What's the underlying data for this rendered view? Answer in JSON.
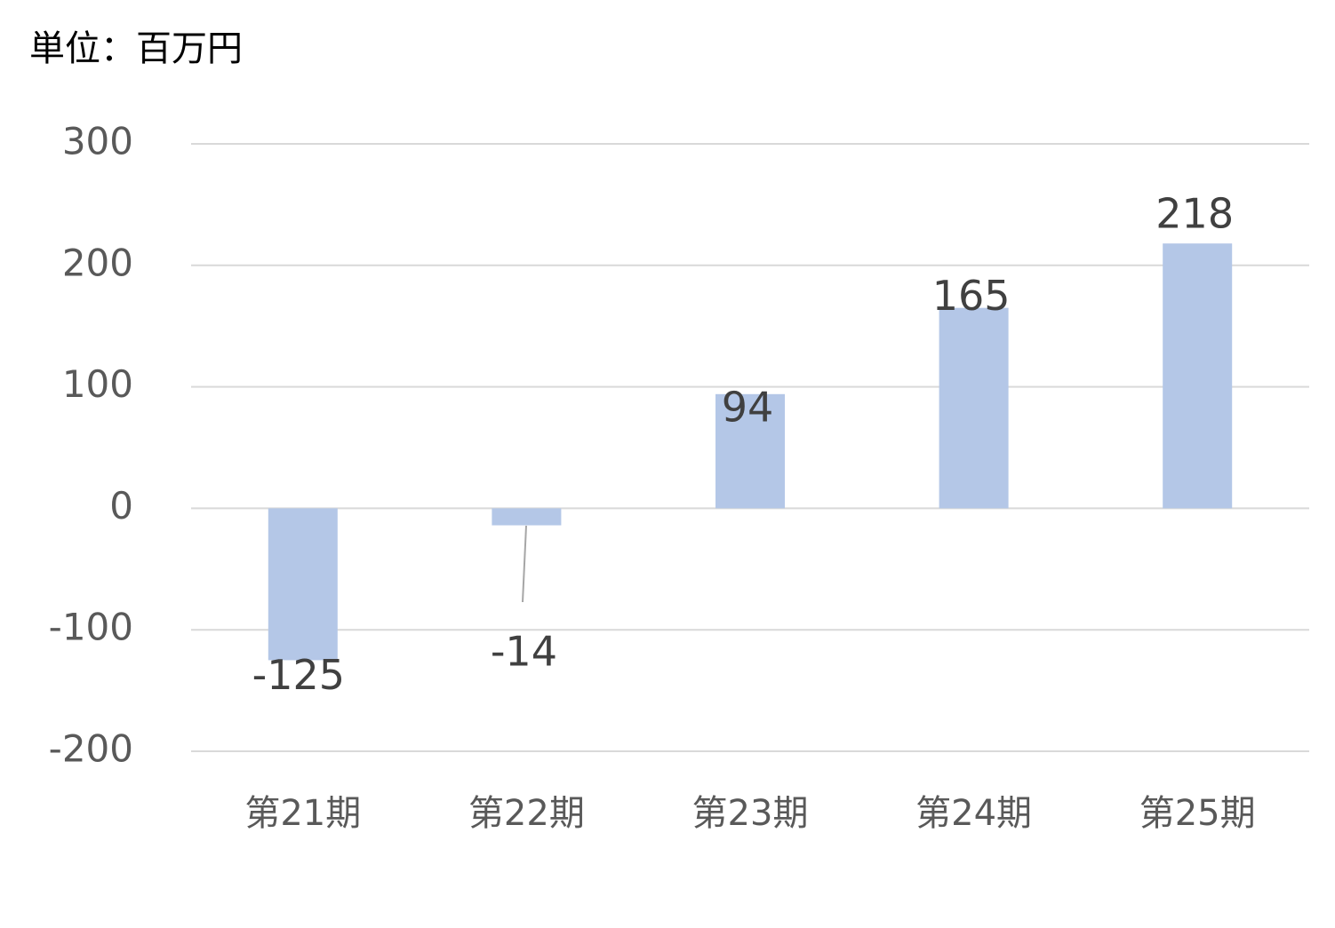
{
  "chart_data": {
    "type": "bar",
    "title": "単位：百万円",
    "categories": [
      "第21期",
      "第22期",
      "第23期",
      "第24期",
      "第25期"
    ],
    "values": [
      -125,
      -14,
      94,
      165,
      218
    ],
    "color": "#b4c7e7",
    "ylim": [
      -200,
      300
    ],
    "yticks": [
      -200,
      -100,
      0,
      100,
      200,
      300
    ],
    "grid": true
  }
}
